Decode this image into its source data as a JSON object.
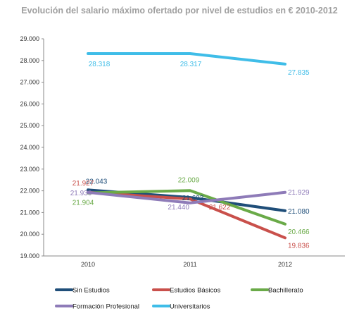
{
  "chart_data": {
    "type": "line",
    "title": "Evolución del salario máximo ofertado por nivel de estudios en € 2010-2012",
    "xlabel": "",
    "ylabel": "",
    "categories": [
      "2010",
      "2011",
      "2012"
    ],
    "ylim": [
      19000,
      29000
    ],
    "y_ticks": [
      "19.000",
      "20.000",
      "21.000",
      "22.000",
      "23.000",
      "24.000",
      "25.000",
      "26.000",
      "27.000",
      "28.000",
      "29.000"
    ],
    "grid": false,
    "legend_position": "bottom",
    "series": [
      {
        "name": "Sin Estudios",
        "color": "#1f4e79",
        "values": [
          22043,
          21693,
          21080
        ],
        "labels": [
          "22.043",
          "21.693",
          "21.080"
        ]
      },
      {
        "name": "Estudios Básicos",
        "color": "#c9504b",
        "values": [
          21927,
          21622,
          19836
        ],
        "labels": [
          "21.927",
          "21.622",
          "19.836"
        ]
      },
      {
        "name": "Bachillerato",
        "color": "#6aaa48",
        "values": [
          21904,
          22009,
          20466
        ],
        "labels": [
          "21.904",
          "22.009",
          "20.466"
        ]
      },
      {
        "name": "Formación Profesional",
        "color": "#8e7bb8",
        "values": [
          21930,
          21440,
          21929
        ],
        "labels": [
          "21.930",
          "21.440",
          "21.929"
        ]
      },
      {
        "name": "Universitarios",
        "color": "#3fbde8",
        "values": [
          28318,
          28317,
          27835
        ],
        "labels": [
          "28.318",
          "28.317",
          "27.835"
        ]
      }
    ]
  }
}
